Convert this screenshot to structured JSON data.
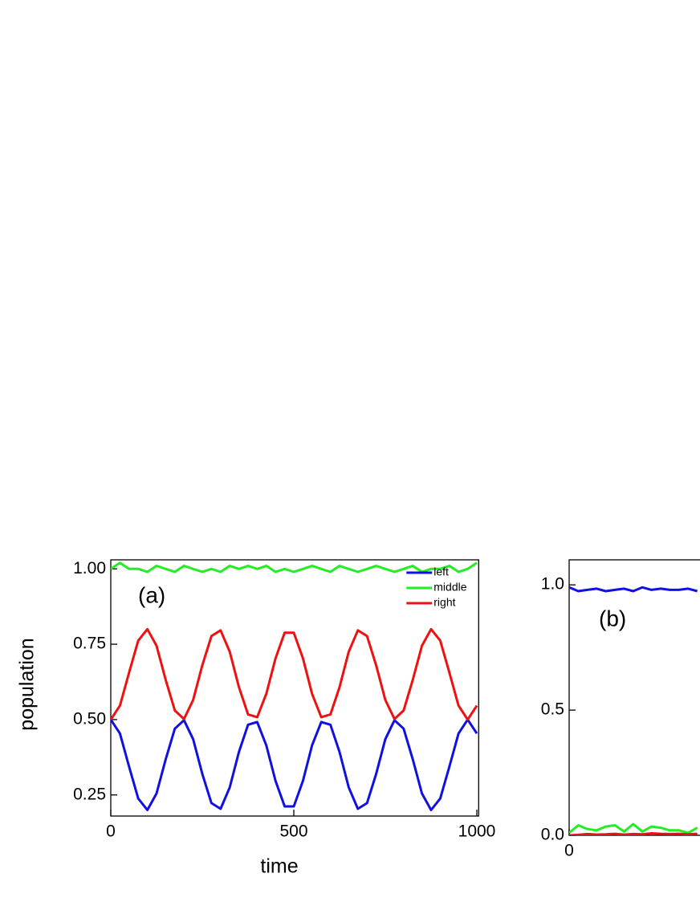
{
  "chart_data": [
    {
      "type": "line",
      "annotation": "(a)",
      "xlabel": "time",
      "ylabel": "population",
      "x": [
        0,
        25,
        50,
        75,
        100,
        125,
        150,
        175,
        200,
        225,
        250,
        275,
        300,
        325,
        350,
        375,
        400,
        425,
        450,
        475,
        500,
        525,
        550,
        575,
        600,
        625,
        650,
        675,
        700,
        725,
        750,
        775,
        800,
        825,
        850,
        875,
        900,
        925,
        950,
        975,
        1000
      ],
      "series": [
        {
          "name": "left",
          "color": "#1010e0",
          "values": [
            0.5,
            0.454,
            0.344,
            0.238,
            0.2,
            0.255,
            0.368,
            0.47,
            0.498,
            0.435,
            0.32,
            0.223,
            0.204,
            0.275,
            0.392,
            0.483,
            0.492,
            0.414,
            0.297,
            0.212,
            0.212,
            0.297,
            0.415,
            0.492,
            0.483,
            0.392,
            0.275,
            0.204,
            0.223,
            0.32,
            0.435,
            0.498,
            0.47,
            0.368,
            0.255,
            0.2,
            0.238,
            0.344,
            0.454,
            0.5,
            0.454
          ]
        },
        {
          "name": "middle",
          "color": "#22ee22",
          "values": [
            1.0,
            1.02,
            1.0,
            1.0,
            0.99,
            1.01,
            1.0,
            0.99,
            1.01,
            1.0,
            0.99,
            1.0,
            0.99,
            1.01,
            1.0,
            1.01,
            1.0,
            1.01,
            0.99,
            1.0,
            0.99,
            1.0,
            1.01,
            1.0,
            0.99,
            1.01,
            1.0,
            0.99,
            1.0,
            1.01,
            1.0,
            0.99,
            1.0,
            1.01,
            0.99,
            1.0,
            1.0,
            1.01,
            0.99,
            1.0,
            1.02
          ]
        },
        {
          "name": "right",
          "color": "#ee1111",
          "values": [
            0.5,
            0.546,
            0.656,
            0.762,
            0.8,
            0.745,
            0.632,
            0.53,
            0.502,
            0.565,
            0.68,
            0.777,
            0.796,
            0.725,
            0.608,
            0.517,
            0.508,
            0.586,
            0.703,
            0.788,
            0.788,
            0.703,
            0.585,
            0.508,
            0.517,
            0.608,
            0.725,
            0.796,
            0.777,
            0.68,
            0.565,
            0.502,
            0.53,
            0.632,
            0.745,
            0.8,
            0.762,
            0.656,
            0.546,
            0.5,
            0.546
          ]
        }
      ],
      "xlim": [
        0,
        1005
      ],
      "ylim": [
        0.18,
        1.03
      ],
      "xticks": [
        0,
        500,
        1000
      ],
      "yticks": [
        {
          "value": 0.25,
          "label": "0.25"
        },
        {
          "value": 0.5,
          "label": "0.50"
        },
        {
          "value": 0.75,
          "label": "0.75"
        },
        {
          "value": 1.0,
          "label": "1.00"
        }
      ],
      "legend": "upper right"
    },
    {
      "type": "line",
      "annotation": "(b)",
      "x": [
        0,
        25,
        50,
        75,
        100,
        125,
        150,
        175,
        200,
        225,
        250,
        275,
        300,
        325,
        350
      ],
      "series": [
        {
          "color": "#1010e0",
          "values": [
            0.99,
            0.975,
            0.98,
            0.985,
            0.975,
            0.98,
            0.985,
            0.975,
            0.99,
            0.98,
            0.985,
            0.98,
            0.98,
            0.985,
            0.975
          ]
        },
        {
          "color": "#22ee22",
          "values": [
            0.01,
            0.04,
            0.025,
            0.02,
            0.035,
            0.04,
            0.015,
            0.045,
            0.015,
            0.035,
            0.03,
            0.02,
            0.02,
            0.01,
            0.03
          ]
        },
        {
          "color": "#ee1111",
          "values": [
            0.0,
            0.002,
            0.005,
            0.003,
            0.004,
            0.006,
            0.003,
            0.005,
            0.004,
            0.008,
            0.006,
            0.005,
            0.006,
            0.004,
            0.006
          ]
        }
      ],
      "xlim": [
        0,
        1005
      ],
      "ylim": [
        0,
        1.1
      ],
      "xticks": [
        0
      ],
      "yticks": [
        {
          "value": 0.0,
          "label": "0.0"
        },
        {
          "value": 0.5,
          "label": "0.5"
        },
        {
          "value": 1.0,
          "label": "1.0"
        }
      ]
    }
  ]
}
